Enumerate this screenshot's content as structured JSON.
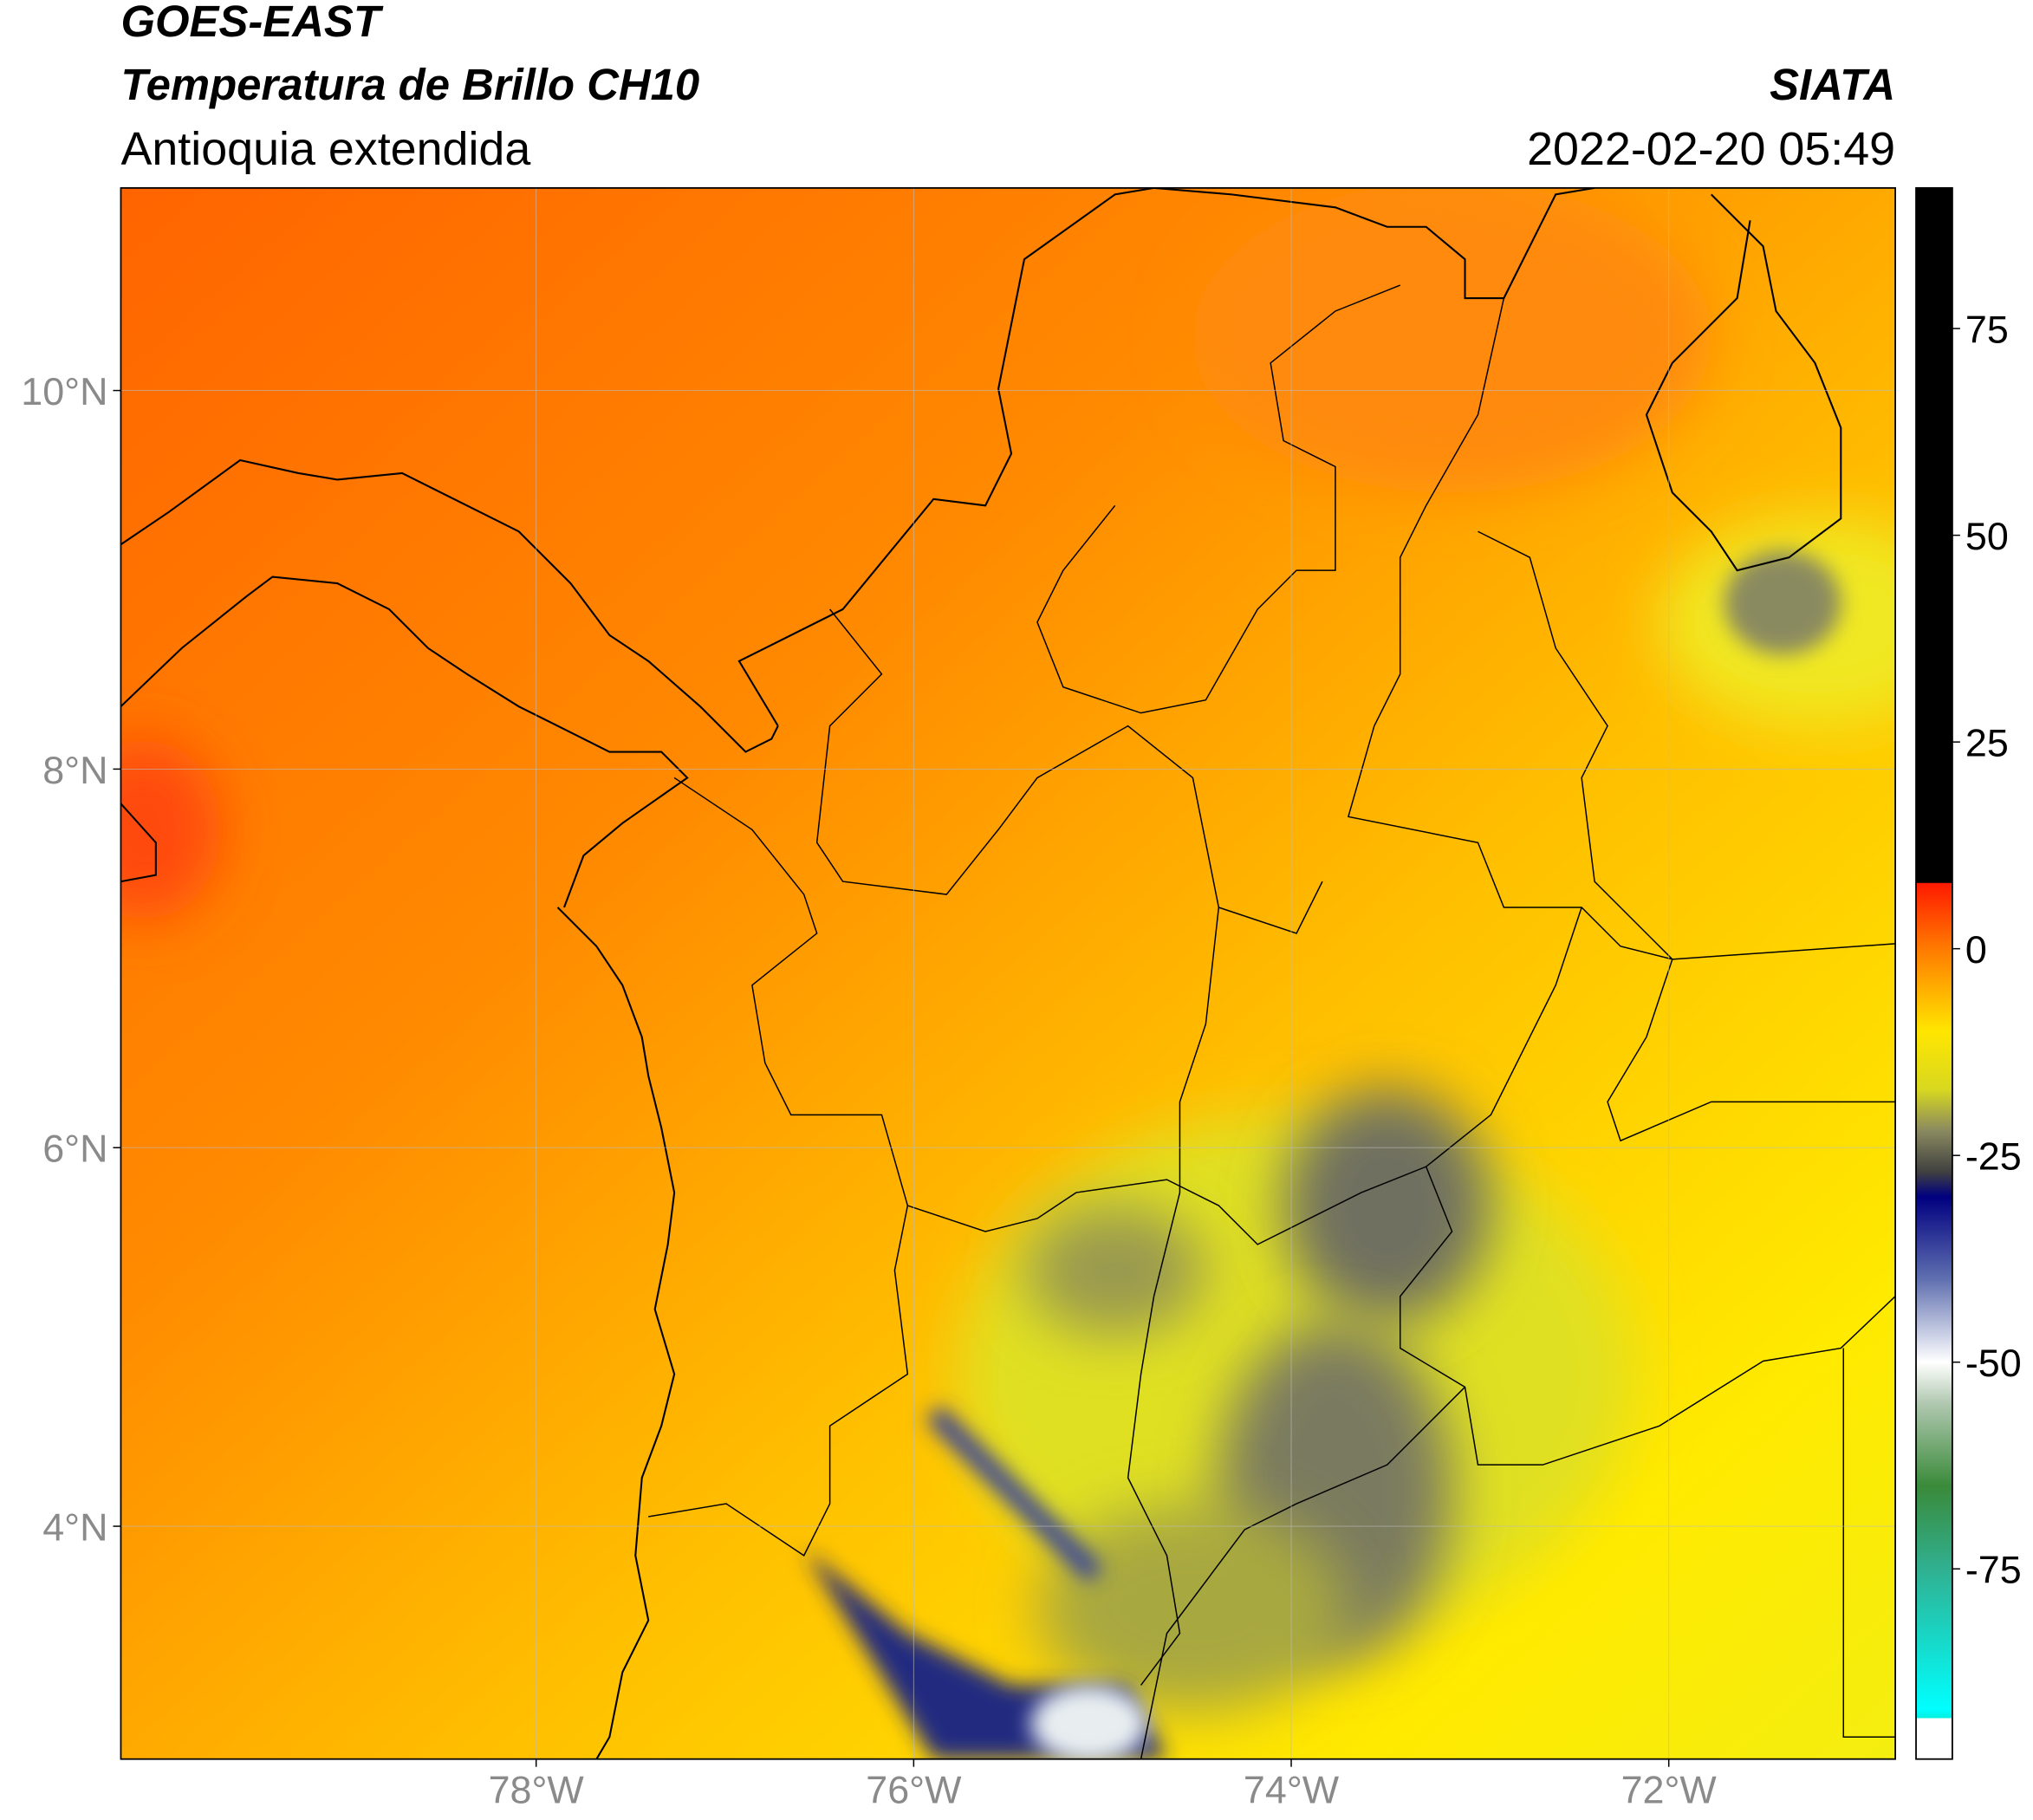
{
  "header": {
    "title": "GOES-EAST",
    "subtitle": "Temperatura de Brillo CH10",
    "region": "Antioquia extendida",
    "source": "SIATA",
    "timestamp": "2022-02-20 05:49"
  },
  "map": {
    "xlim": [
      -80.2,
      -70.8
    ],
    "ylim": [
      2.77,
      11.07
    ],
    "grid": true,
    "xticks": [
      {
        "value": -78,
        "label": "78°W"
      },
      {
        "value": -76,
        "label": "76°W"
      },
      {
        "value": -74,
        "label": "74°W"
      },
      {
        "value": -72,
        "label": "72°W"
      }
    ],
    "yticks": [
      {
        "value": 10,
        "label": "10°N"
      },
      {
        "value": 8,
        "label": "8°N"
      },
      {
        "value": 6,
        "label": "6°N"
      },
      {
        "value": 4,
        "label": "4°N"
      }
    ]
  },
  "colorbar": {
    "lim": [
      -98,
      92
    ],
    "ticks": [
      75,
      50,
      25,
      0,
      -25,
      -50,
      -75
    ],
    "colorscale": [
      [
        92,
        "#000000"
      ],
      [
        8,
        "#000000"
      ],
      [
        7.9,
        "#ff1a00"
      ],
      [
        0,
        "#ff7a00"
      ],
      [
        -10,
        "#ffe600"
      ],
      [
        -17,
        "#d8d820"
      ],
      [
        -22,
        "#8a8a60"
      ],
      [
        -27,
        "#404040"
      ],
      [
        -30,
        "#000080"
      ],
      [
        -40,
        "#6070b0"
      ],
      [
        -50,
        "#ffffff"
      ],
      [
        -55,
        "#b0c8b0"
      ],
      [
        -65,
        "#3a8a3a"
      ],
      [
        -75,
        "#30b090"
      ],
      [
        -92,
        "#00ffff"
      ],
      [
        -93,
        "#00f0e0"
      ],
      [
        -93.1,
        "#ffffff"
      ],
      [
        -98,
        "#ffffff"
      ]
    ]
  }
}
